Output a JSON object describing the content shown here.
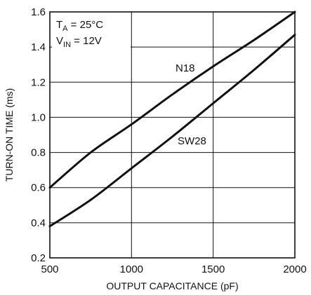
{
  "chart_data": {
    "type": "line",
    "title": "",
    "xlabel": "OUTPUT CAPACITANCE (pF)",
    "ylabel": "TURN-ON TIME (ms)",
    "xlim": [
      500,
      2000
    ],
    "ylim": [
      0.2,
      1.6
    ],
    "xticks": [
      "500",
      "1000",
      "1500",
      "2000"
    ],
    "yticks": [
      "0.2",
      "0.4",
      "0.6",
      "0.8",
      "1.0",
      "1.2",
      "1.4",
      "1.6"
    ],
    "grid": true,
    "conditions": {
      "ta_main": "T",
      "ta_sub": "A",
      "ta_rest": " = 25°C",
      "vin_main": "V",
      "vin_sub": "IN",
      "vin_rest": " = 12V"
    },
    "series": [
      {
        "name": "N18",
        "x": [
          500,
          750,
          1000,
          1250,
          1500,
          1750,
          2000
        ],
        "y": [
          0.6,
          0.8,
          0.96,
          1.13,
          1.29,
          1.44,
          1.6
        ]
      },
      {
        "name": "SW28",
        "x": [
          500,
          750,
          1000,
          1250,
          1500,
          1750,
          2000
        ],
        "y": [
          0.38,
          0.53,
          0.71,
          0.89,
          1.08,
          1.27,
          1.47
        ]
      }
    ]
  }
}
